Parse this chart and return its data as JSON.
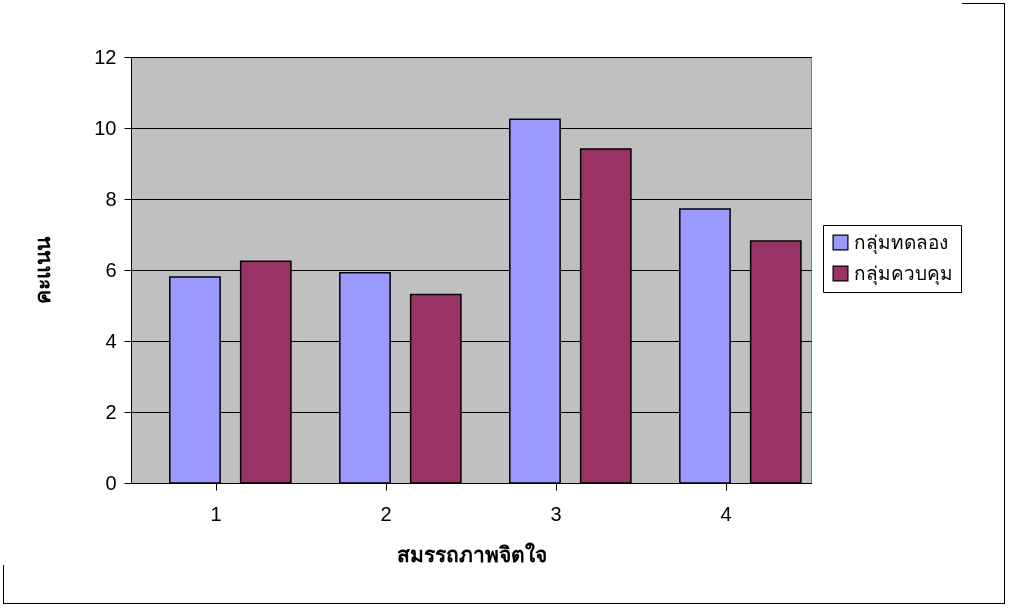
{
  "chart_data": {
    "type": "bar",
    "xlabel": "สมรรถภาพจิตใจ",
    "ylabel": "คะแนน",
    "categories": [
      "1",
      "2",
      "3",
      "4"
    ],
    "series": [
      {
        "name": "กลุ่มทดลอง",
        "color": "#9999ff",
        "values": [
          5.8,
          5.92,
          10.25,
          7.72
        ]
      },
      {
        "name": "กลุ่มควบคุม",
        "color": "#993366",
        "values": [
          6.25,
          5.31,
          9.41,
          6.82
        ]
      }
    ],
    "ylim": [
      0,
      12
    ],
    "yticks": [
      0,
      2,
      4,
      6,
      8,
      10,
      12
    ],
    "grid": "y",
    "legend": "right"
  }
}
